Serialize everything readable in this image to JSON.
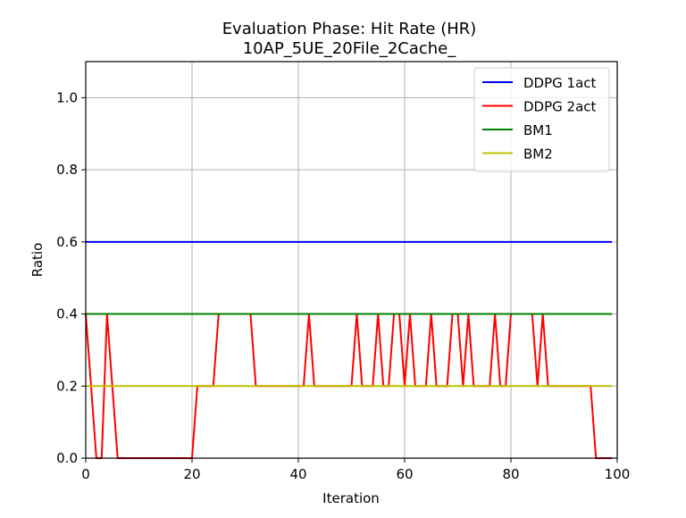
{
  "chart_data": {
    "type": "line",
    "title": "Evaluation Phase: Hit Rate (HR)",
    "subtitle": "10AP_5UE_20File_2Cache_",
    "xlabel": "Iteration",
    "ylabel": "Ratio",
    "xlim": [
      0,
      100
    ],
    "ylim": [
      0,
      1.1
    ],
    "xticks": [
      0,
      20,
      40,
      60,
      80,
      100
    ],
    "xtick_labels": [
      "0",
      "20",
      "40",
      "60",
      "80",
      "100"
    ],
    "yticks": [
      0.0,
      0.2,
      0.4,
      0.6,
      0.8,
      1.0
    ],
    "ytick_labels": [
      "0.0",
      "0.2",
      "0.4",
      "0.6",
      "0.8",
      "1.0"
    ],
    "grid": true,
    "legend_position": "top-right",
    "x": [
      0,
      1,
      2,
      3,
      4,
      5,
      6,
      7,
      8,
      9,
      10,
      11,
      12,
      13,
      14,
      15,
      16,
      17,
      18,
      19,
      20,
      21,
      22,
      23,
      24,
      25,
      26,
      27,
      28,
      29,
      30,
      31,
      32,
      33,
      34,
      35,
      36,
      37,
      38,
      39,
      40,
      41,
      42,
      43,
      44,
      45,
      46,
      47,
      48,
      49,
      50,
      51,
      52,
      53,
      54,
      55,
      56,
      57,
      58,
      59,
      60,
      61,
      62,
      63,
      64,
      65,
      66,
      67,
      68,
      69,
      70,
      71,
      72,
      73,
      74,
      75,
      76,
      77,
      78,
      79,
      80,
      81,
      82,
      83,
      84,
      85,
      86,
      87,
      88,
      89,
      90,
      91,
      92,
      93,
      94,
      95,
      96,
      97,
      98,
      99
    ],
    "series": [
      {
        "name": "DDPG 1act",
        "color": "#0000ff",
        "values": [
          0.6,
          0.6,
          0.6,
          0.6,
          0.6,
          0.6,
          0.6,
          0.6,
          0.6,
          0.6,
          0.6,
          0.6,
          0.6,
          0.6,
          0.6,
          0.6,
          0.6,
          0.6,
          0.6,
          0.6,
          0.6,
          0.6,
          0.6,
          0.6,
          0.6,
          0.6,
          0.6,
          0.6,
          0.6,
          0.6,
          0.6,
          0.6,
          0.6,
          0.6,
          0.6,
          0.6,
          0.6,
          0.6,
          0.6,
          0.6,
          0.6,
          0.6,
          0.6,
          0.6,
          0.6,
          0.6,
          0.6,
          0.6,
          0.6,
          0.6,
          0.6,
          0.6,
          0.6,
          0.6,
          0.6,
          0.6,
          0.6,
          0.6,
          0.6,
          0.6,
          0.6,
          0.6,
          0.6,
          0.6,
          0.6,
          0.6,
          0.6,
          0.6,
          0.6,
          0.6,
          0.6,
          0.6,
          0.6,
          0.6,
          0.6,
          0.6,
          0.6,
          0.6,
          0.6,
          0.6,
          0.6,
          0.6,
          0.6,
          0.6,
          0.6,
          0.6,
          0.6,
          0.6,
          0.6,
          0.6,
          0.6,
          0.6,
          0.6,
          0.6,
          0.6,
          0.6,
          0.6,
          0.6,
          0.6,
          0.6
        ]
      },
      {
        "name": "DDPG 2act",
        "color": "#ff0000",
        "values": [
          0.4,
          0.2,
          0.0,
          0.0,
          0.4,
          0.2,
          0.0,
          0.0,
          0.0,
          0.0,
          0.0,
          0.0,
          0.0,
          0.0,
          0.0,
          0.0,
          0.0,
          0.0,
          0.0,
          0.0,
          0.0,
          0.2,
          0.2,
          0.2,
          0.2,
          0.4,
          0.4,
          0.4,
          0.4,
          0.4,
          0.4,
          0.4,
          0.2,
          0.2,
          0.2,
          0.2,
          0.2,
          0.2,
          0.2,
          0.2,
          0.2,
          0.2,
          0.4,
          0.2,
          0.2,
          0.2,
          0.2,
          0.2,
          0.2,
          0.2,
          0.2,
          0.4,
          0.2,
          0.2,
          0.2,
          0.4,
          0.2,
          0.2,
          0.4,
          0.4,
          0.2,
          0.4,
          0.2,
          0.2,
          0.2,
          0.4,
          0.2,
          0.2,
          0.2,
          0.4,
          0.4,
          0.2,
          0.4,
          0.2,
          0.2,
          0.2,
          0.2,
          0.4,
          0.2,
          0.2,
          0.4,
          0.4,
          0.4,
          0.4,
          0.4,
          0.2,
          0.4,
          0.2,
          0.2,
          0.2,
          0.2,
          0.2,
          0.2,
          0.2,
          0.2,
          0.2,
          0.0,
          0.0,
          0.0,
          0.0
        ]
      },
      {
        "name": "BM1",
        "color": "#008000",
        "values": [
          0.4,
          0.4,
          0.4,
          0.4,
          0.4,
          0.4,
          0.4,
          0.4,
          0.4,
          0.4,
          0.4,
          0.4,
          0.4,
          0.4,
          0.4,
          0.4,
          0.4,
          0.4,
          0.4,
          0.4,
          0.4,
          0.4,
          0.4,
          0.4,
          0.4,
          0.4,
          0.4,
          0.4,
          0.4,
          0.4,
          0.4,
          0.4,
          0.4,
          0.4,
          0.4,
          0.4,
          0.4,
          0.4,
          0.4,
          0.4,
          0.4,
          0.4,
          0.4,
          0.4,
          0.4,
          0.4,
          0.4,
          0.4,
          0.4,
          0.4,
          0.4,
          0.4,
          0.4,
          0.4,
          0.4,
          0.4,
          0.4,
          0.4,
          0.4,
          0.4,
          0.4,
          0.4,
          0.4,
          0.4,
          0.4,
          0.4,
          0.4,
          0.4,
          0.4,
          0.4,
          0.4,
          0.4,
          0.4,
          0.4,
          0.4,
          0.4,
          0.4,
          0.4,
          0.4,
          0.4,
          0.4,
          0.4,
          0.4,
          0.4,
          0.4,
          0.4,
          0.4,
          0.4,
          0.4,
          0.4,
          0.4,
          0.4,
          0.4,
          0.4,
          0.4,
          0.4,
          0.4,
          0.4,
          0.4,
          0.4
        ]
      },
      {
        "name": "BM2",
        "color": "#bfbf00",
        "values": [
          0.2,
          0.2,
          0.2,
          0.2,
          0.2,
          0.2,
          0.2,
          0.2,
          0.2,
          0.2,
          0.2,
          0.2,
          0.2,
          0.2,
          0.2,
          0.2,
          0.2,
          0.2,
          0.2,
          0.2,
          0.2,
          0.2,
          0.2,
          0.2,
          0.2,
          0.2,
          0.2,
          0.2,
          0.2,
          0.2,
          0.2,
          0.2,
          0.2,
          0.2,
          0.2,
          0.2,
          0.2,
          0.2,
          0.2,
          0.2,
          0.2,
          0.2,
          0.2,
          0.2,
          0.2,
          0.2,
          0.2,
          0.2,
          0.2,
          0.2,
          0.2,
          0.2,
          0.2,
          0.2,
          0.2,
          0.2,
          0.2,
          0.2,
          0.2,
          0.2,
          0.2,
          0.2,
          0.2,
          0.2,
          0.2,
          0.2,
          0.2,
          0.2,
          0.2,
          0.2,
          0.2,
          0.2,
          0.2,
          0.2,
          0.2,
          0.2,
          0.2,
          0.2,
          0.2,
          0.2,
          0.2,
          0.2,
          0.2,
          0.2,
          0.2,
          0.2,
          0.2,
          0.2,
          0.2,
          0.2,
          0.2,
          0.2,
          0.2,
          0.2,
          0.2,
          0.2,
          0.2,
          0.2,
          0.2,
          0.2
        ]
      }
    ]
  }
}
